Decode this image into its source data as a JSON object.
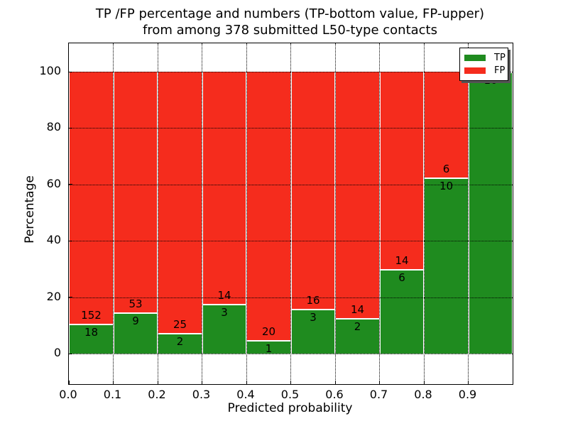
{
  "title": {
    "line1": "TP /FP percentage and numbers (TP-bottom value, FP-upper)",
    "line2": "from among 378 submitted L50-type contacts"
  },
  "axes": {
    "xlabel": "Predicted probability",
    "ylabel": "Percentage",
    "x_tick_labels": [
      "0.0",
      "0.1",
      "0.2",
      "0.3",
      "0.4",
      "0.5",
      "0.6",
      "0.7",
      "0.8",
      "0.9"
    ],
    "y_tick_values": [
      0,
      20,
      40,
      60,
      80,
      100
    ],
    "xlim": [
      0.0,
      1.0
    ],
    "grid": "dotted black, both axes, drawn over bars"
  },
  "legend": {
    "position": "upper-right",
    "entries": [
      {
        "label": "TP",
        "color": "#1f8b1f"
      },
      {
        "label": "FP",
        "color": "#f52c1d"
      }
    ]
  },
  "chart_data": {
    "type": "bar",
    "subtype": "stacked-100-percent",
    "title": "TP /FP percentage and numbers (TP-bottom value, FP-upper) from among 378 submitted L50-type contacts",
    "xlabel": "Predicted probability",
    "ylabel": "Percentage",
    "total_contacts": 378,
    "bin_width": 0.1,
    "bin_starts": [
      0.0,
      0.1,
      0.2,
      0.3,
      0.4,
      0.5,
      0.6,
      0.7,
      0.8,
      0.9
    ],
    "bar_total_percent": 100,
    "series": [
      {
        "name": "TP",
        "color": "#1f8b1f",
        "counts": [
          18,
          9,
          2,
          3,
          1,
          3,
          2,
          6,
          10,
          10
        ]
      },
      {
        "name": "FP",
        "color": "#f52c1d",
        "counts": [
          152,
          53,
          25,
          14,
          20,
          16,
          14,
          14,
          6,
          0
        ]
      }
    ],
    "tp_percent_of_bar": [
      10.6,
      14.5,
      7.4,
      17.6,
      4.8,
      15.8,
      12.5,
      30.0,
      62.5,
      100.0
    ],
    "tp_labels_shown": [
      "18",
      "9",
      "2",
      "3",
      "1",
      "3",
      "2",
      "6",
      "10",
      "10"
    ],
    "fp_labels_shown": [
      "152",
      "53",
      "25",
      "14",
      "20",
      "16",
      "14",
      "14",
      "6",
      ""
    ]
  },
  "colors": {
    "tp_green": "#1f8b1f",
    "fp_red": "#f52c1d",
    "grid": "#000000",
    "frame": "#000000",
    "background": "#ffffff",
    "bar_edge": "#ffffff",
    "legend_shadow": "#555555"
  }
}
